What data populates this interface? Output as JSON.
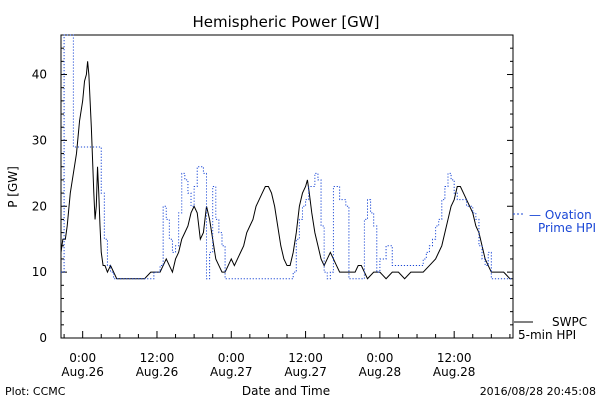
{
  "chart_data": {
    "type": "line",
    "title": "Hemispheric Power [GW]",
    "ylabel": "P [GW]",
    "xlabel": "Date and Time",
    "ylim": [
      0,
      46
    ],
    "xlim_hours": [
      -3.5,
      69.5
    ],
    "yticks": [
      0,
      10,
      20,
      30,
      40
    ],
    "xticks": [
      {
        "h": 0,
        "time": "0:00",
        "date": "Aug.26"
      },
      {
        "h": 12,
        "time": "12:00",
        "date": "Aug.26"
      },
      {
        "h": 24,
        "time": "0:00",
        "date": "Aug.27"
      },
      {
        "h": 36,
        "time": "12:00",
        "date": "Aug.27"
      },
      {
        "h": 48,
        "time": "0:00",
        "date": "Aug.28"
      },
      {
        "h": 60,
        "time": "12:00",
        "date": "Aug.28"
      }
    ],
    "series": [
      {
        "name": "SWPC 5-min HPI",
        "label_lines": [
          "SWPC",
          "5-min HPI"
        ],
        "color": "#000000",
        "style": "solid",
        "points": [
          [
            -3.5,
            13
          ],
          [
            -3.2,
            15
          ],
          [
            -2.8,
            15
          ],
          [
            -2.5,
            17
          ],
          [
            -2,
            22
          ],
          [
            -1.5,
            25
          ],
          [
            -1,
            28
          ],
          [
            -0.5,
            33
          ],
          [
            0,
            36
          ],
          [
            0.3,
            39
          ],
          [
            0.6,
            40
          ],
          [
            0.8,
            42
          ],
          [
            1,
            40
          ],
          [
            1.2,
            36
          ],
          [
            1.4,
            32
          ],
          [
            1.6,
            27
          ],
          [
            1.8,
            22
          ],
          [
            2,
            18
          ],
          [
            2.2,
            20
          ],
          [
            2.4,
            26
          ],
          [
            2.6,
            22
          ],
          [
            2.8,
            17
          ],
          [
            3,
            13
          ],
          [
            3.3,
            11
          ],
          [
            3.6,
            11
          ],
          [
            4,
            10
          ],
          [
            4.5,
            11
          ],
          [
            5,
            10
          ],
          [
            5.5,
            9
          ],
          [
            6,
            9
          ],
          [
            7,
            9
          ],
          [
            8,
            9
          ],
          [
            9,
            9
          ],
          [
            10,
            9
          ],
          [
            11,
            10
          ],
          [
            12,
            10
          ],
          [
            12.5,
            10
          ],
          [
            13,
            11
          ],
          [
            13.5,
            12
          ],
          [
            14,
            11
          ],
          [
            14.5,
            10
          ],
          [
            15,
            12
          ],
          [
            15.5,
            13
          ],
          [
            16,
            15
          ],
          [
            16.5,
            16
          ],
          [
            17,
            17
          ],
          [
            17.5,
            19
          ],
          [
            18,
            20
          ],
          [
            18.5,
            19
          ],
          [
            19,
            15
          ],
          [
            19.5,
            16
          ],
          [
            20,
            20
          ],
          [
            20.5,
            18
          ],
          [
            21,
            15
          ],
          [
            21.5,
            12
          ],
          [
            22,
            11
          ],
          [
            22.5,
            10
          ],
          [
            23,
            10
          ],
          [
            23.5,
            11
          ],
          [
            24,
            12
          ],
          [
            24.5,
            11
          ],
          [
            25,
            12
          ],
          [
            25.5,
            13
          ],
          [
            26,
            14
          ],
          [
            26.5,
            16
          ],
          [
            27,
            17
          ],
          [
            27.5,
            18
          ],
          [
            28,
            20
          ],
          [
            28.5,
            21
          ],
          [
            29,
            22
          ],
          [
            29.5,
            23
          ],
          [
            30,
            23
          ],
          [
            30.5,
            22
          ],
          [
            31,
            20
          ],
          [
            31.5,
            17
          ],
          [
            32,
            14
          ],
          [
            32.5,
            12
          ],
          [
            33,
            11
          ],
          [
            33.5,
            11
          ],
          [
            34,
            13
          ],
          [
            34.5,
            16
          ],
          [
            35,
            20
          ],
          [
            35.5,
            22
          ],
          [
            36,
            23
          ],
          [
            36.3,
            24
          ],
          [
            36.6,
            22
          ],
          [
            37,
            19
          ],
          [
            37.5,
            16
          ],
          [
            38,
            14
          ],
          [
            38.5,
            12
          ],
          [
            39,
            11
          ],
          [
            39.5,
            12
          ],
          [
            40,
            13
          ],
          [
            40.5,
            12
          ],
          [
            41,
            11
          ],
          [
            41.5,
            10
          ],
          [
            42,
            10
          ],
          [
            43,
            10
          ],
          [
            44,
            10
          ],
          [
            44.5,
            11
          ],
          [
            45,
            11
          ],
          [
            45.5,
            10
          ],
          [
            46,
            9
          ],
          [
            47,
            10
          ],
          [
            48,
            10
          ],
          [
            49,
            9
          ],
          [
            50,
            10
          ],
          [
            51,
            10
          ],
          [
            52,
            9
          ],
          [
            53,
            10
          ],
          [
            54,
            10
          ],
          [
            55,
            10
          ],
          [
            56,
            11
          ],
          [
            57,
            12
          ],
          [
            57.5,
            13
          ],
          [
            58,
            14
          ],
          [
            58.5,
            16
          ],
          [
            59,
            18
          ],
          [
            59.5,
            20
          ],
          [
            60,
            21
          ],
          [
            60.5,
            23
          ],
          [
            61,
            23
          ],
          [
            61.5,
            22
          ],
          [
            62,
            21
          ],
          [
            62.5,
            20
          ],
          [
            63,
            19
          ],
          [
            63.5,
            17
          ],
          [
            64,
            16
          ],
          [
            64.5,
            14
          ],
          [
            65,
            12
          ],
          [
            65.5,
            11
          ],
          [
            66,
            10
          ],
          [
            66.5,
            10
          ],
          [
            67,
            10
          ],
          [
            67.5,
            10
          ],
          [
            68,
            10
          ],
          [
            69,
            9
          ],
          [
            69.5,
            9
          ]
        ]
      },
      {
        "name": "Ovation Prime HPI",
        "label_lines": [
          "— Ovation",
          "Prime HPI"
        ],
        "color": "#1a47d6",
        "style": "dotted",
        "step_width_hours": 0.5,
        "points": [
          [
            -3.5,
            10
          ],
          [
            -3,
            46
          ],
          [
            -2,
            46
          ],
          [
            -1.5,
            29
          ],
          [
            -1,
            29
          ],
          [
            0,
            29
          ],
          [
            1,
            29
          ],
          [
            2,
            29
          ],
          [
            2.5,
            29
          ],
          [
            3,
            22
          ],
          [
            3.5,
            15
          ],
          [
            4,
            11
          ],
          [
            4.5,
            10
          ],
          [
            5,
            9
          ],
          [
            6,
            9
          ],
          [
            7,
            9
          ],
          [
            8,
            9
          ],
          [
            9,
            9
          ],
          [
            10,
            9
          ],
          [
            11,
            9
          ],
          [
            11.5,
            10
          ],
          [
            12,
            10
          ],
          [
            12.5,
            11
          ],
          [
            13,
            20
          ],
          [
            13.5,
            18
          ],
          [
            14,
            15
          ],
          [
            14.5,
            13
          ],
          [
            15,
            14
          ],
          [
            15.5,
            19
          ],
          [
            16,
            25
          ],
          [
            16.5,
            24
          ],
          [
            17,
            22
          ],
          [
            17.5,
            20
          ],
          [
            18,
            23
          ],
          [
            18.5,
            26
          ],
          [
            19,
            26
          ],
          [
            19.5,
            25
          ],
          [
            20,
            9
          ],
          [
            20.5,
            13
          ],
          [
            21,
            23
          ],
          [
            21.5,
            18
          ],
          [
            22,
            16
          ],
          [
            22.5,
            14
          ],
          [
            23,
            9
          ],
          [
            24,
            9
          ],
          [
            25,
            9
          ],
          [
            26,
            9
          ],
          [
            27,
            9
          ],
          [
            28,
            9
          ],
          [
            29,
            9
          ],
          [
            30,
            9
          ],
          [
            31,
            9
          ],
          [
            32,
            9
          ],
          [
            33,
            9
          ],
          [
            34,
            10
          ],
          [
            34.5,
            15
          ],
          [
            35,
            18
          ],
          [
            35.5,
            20
          ],
          [
            36,
            21
          ],
          [
            36.5,
            23
          ],
          [
            37,
            23
          ],
          [
            37.5,
            25
          ],
          [
            38,
            24
          ],
          [
            38.5,
            17
          ],
          [
            39,
            10
          ],
          [
            39.5,
            9
          ],
          [
            40,
            10
          ],
          [
            40.5,
            23
          ],
          [
            41,
            23
          ],
          [
            41.5,
            21
          ],
          [
            42,
            21
          ],
          [
            42.5,
            20
          ],
          [
            43,
            9
          ],
          [
            44,
            9
          ],
          [
            45,
            9
          ],
          [
            45.5,
            18
          ],
          [
            46,
            21
          ],
          [
            46.5,
            19
          ],
          [
            47,
            17
          ],
          [
            47.5,
            10
          ],
          [
            48,
            12
          ],
          [
            49,
            14
          ],
          [
            50,
            11
          ],
          [
            51,
            11
          ],
          [
            52,
            11
          ],
          [
            53,
            11
          ],
          [
            54,
            11
          ],
          [
            55,
            12
          ],
          [
            55.5,
            13
          ],
          [
            56,
            14
          ],
          [
            56.5,
            15
          ],
          [
            57,
            17
          ],
          [
            57.5,
            18
          ],
          [
            58,
            21
          ],
          [
            58.5,
            23
          ],
          [
            59,
            25
          ],
          [
            59.5,
            24
          ],
          [
            60,
            22
          ],
          [
            60.5,
            21
          ],
          [
            61,
            21
          ],
          [
            61.5,
            21
          ],
          [
            62,
            20
          ],
          [
            62.5,
            20
          ],
          [
            63,
            19
          ],
          [
            63.5,
            18
          ],
          [
            64,
            14
          ],
          [
            64.5,
            12
          ],
          [
            65,
            11
          ],
          [
            65.5,
            13
          ],
          [
            66,
            9
          ],
          [
            67,
            9
          ],
          [
            68,
            9
          ],
          [
            69,
            9
          ],
          [
            69.5,
            9
          ]
        ]
      }
    ]
  },
  "footer": {
    "plot_credit": "Plot: CCMC",
    "timestamp": "2016/08/28 20:45:08"
  }
}
